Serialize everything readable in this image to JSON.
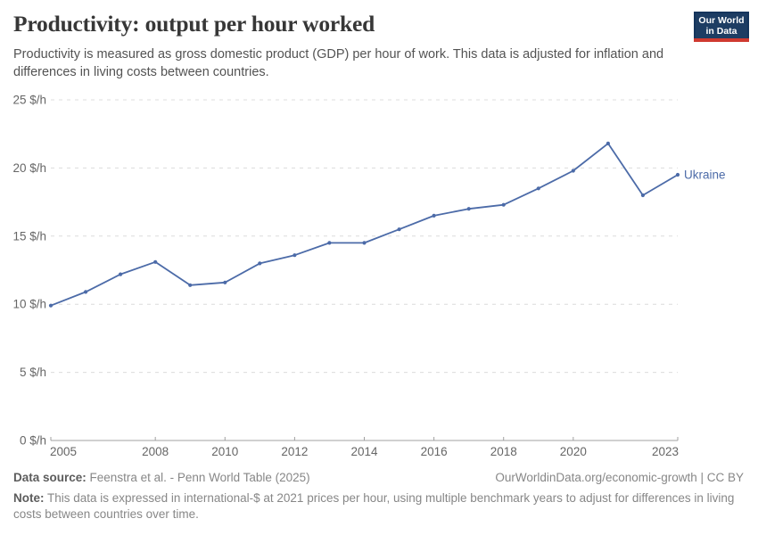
{
  "header": {
    "title": "Productivity: output per hour worked",
    "subtitle": "Productivity is measured as gross domestic product (GDP) per hour of work. This data is adjusted for inflation and differences in living costs between countries.",
    "logo": {
      "line1": "Our World",
      "line2": "in Data",
      "bg_color": "#1d3d63",
      "stripe_color": "#cf3a30"
    }
  },
  "chart_data": {
    "type": "line",
    "title": "Productivity: output per hour worked",
    "x": [
      2005,
      2006,
      2007,
      2008,
      2009,
      2010,
      2011,
      2012,
      2013,
      2014,
      2015,
      2016,
      2017,
      2018,
      2019,
      2020,
      2021,
      2022,
      2023
    ],
    "series": [
      {
        "name": "Ukraine",
        "color": "#4c6ba8",
        "values": [
          9.9,
          10.9,
          12.2,
          13.1,
          11.4,
          11.6,
          13.0,
          13.6,
          14.5,
          14.5,
          15.5,
          16.5,
          17.0,
          17.3,
          18.5,
          19.8,
          21.8,
          18.0,
          19.5
        ]
      }
    ],
    "xlim": [
      2005,
      2023
    ],
    "ylim": [
      0,
      25
    ],
    "x_ticks": [
      2005,
      2008,
      2010,
      2012,
      2014,
      2016,
      2018,
      2020,
      2023
    ],
    "y_ticks": [
      0,
      5,
      10,
      15,
      20,
      25
    ],
    "y_tick_suffix": " $/h",
    "grid": "horizontal dashed",
    "legend": "end-of-line label",
    "ylabel": "",
    "xlabel": ""
  },
  "footer": {
    "datasource_label": "Data source:",
    "datasource_text": "Feenstra et al. - Penn World Table (2025)",
    "url_text": "OurWorldinData.org/economic-growth | CC BY",
    "note_label": "Note:",
    "note_text": "This data is expressed in international-$ at 2021 prices per hour, using multiple benchmark years to adjust for differences in living costs between countries over time."
  }
}
